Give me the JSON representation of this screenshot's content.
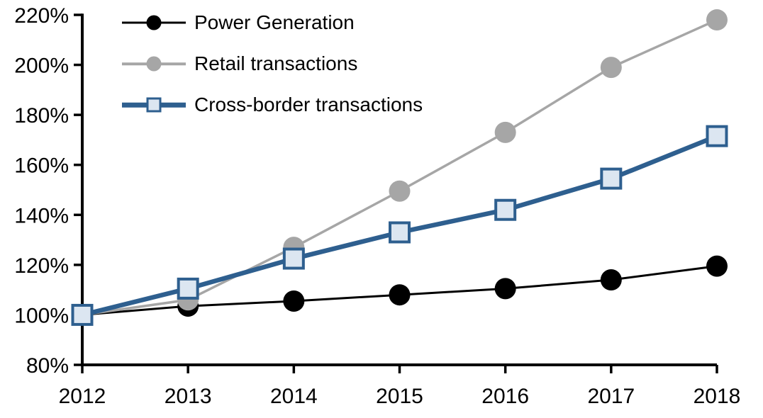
{
  "chart_data": {
    "type": "line",
    "title": "",
    "xlabel": "",
    "ylabel": "",
    "grid": false,
    "legend_position": "top-left-inside",
    "axis_color": "#000000",
    "background_color": "#FFFFFF",
    "x": [
      2012,
      2013,
      2014,
      2015,
      2016,
      2017,
      2018
    ],
    "x_tick_labels": [
      "2012",
      "2013",
      "2014",
      "2015",
      "2016",
      "2017",
      "2018"
    ],
    "y_axis": {
      "min": 80,
      "max": 220,
      "step": 20,
      "suffix": "%"
    },
    "y_tick_labels": [
      "220%",
      "200%",
      "180%",
      "160%",
      "140%",
      "120%",
      "100%",
      "80%"
    ],
    "series": [
      {
        "name": "Power Generation",
        "color": "#000000",
        "line_width": 3,
        "marker": "circle",
        "marker_fill": "#000000",
        "values": [
          100,
          103.5,
          105.5,
          108,
          110.5,
          114,
          119.5
        ]
      },
      {
        "name": "Retail transactions",
        "color": "#A6A6A6",
        "line_width": 3.5,
        "marker": "circle",
        "marker_fill": "#A6A6A6",
        "values": [
          100,
          106,
          127,
          149.5,
          173,
          199,
          218
        ]
      },
      {
        "name": "Cross-border transactions",
        "color": "#2E5F8F",
        "line_width": 6.5,
        "marker": "square",
        "marker_fill": "#DCE6F1",
        "marker_border": "#2E5F8F",
        "values": [
          100,
          110.5,
          122.5,
          133,
          142,
          154.5,
          171.5
        ]
      }
    ]
  }
}
